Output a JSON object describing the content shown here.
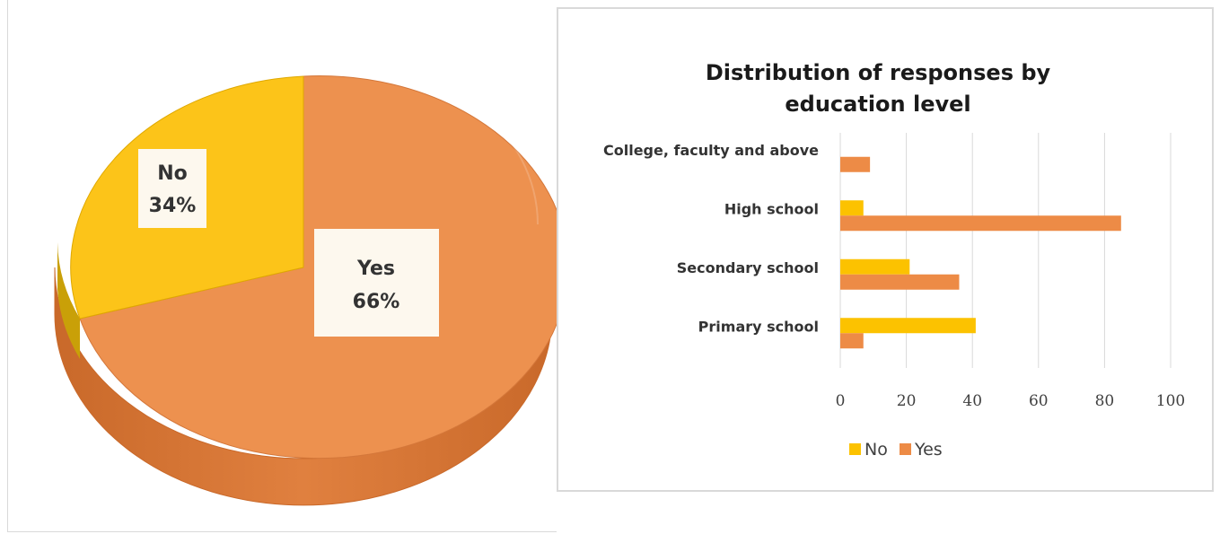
{
  "chart_data": [
    {
      "type": "pie",
      "categories": [
        "Yes",
        "No"
      ],
      "values": [
        66,
        34
      ],
      "labels": {
        "yes_name": "Yes",
        "yes_pct": "66%",
        "no_name": "No",
        "no_pct": "34%"
      },
      "colors": {
        "Yes": "#ed914f",
        "No": "#fcc419"
      },
      "style": "3d"
    },
    {
      "type": "bar",
      "orientation": "horizontal",
      "title_line1": "Distribution of responses by",
      "title_line2": "education level",
      "categories": [
        "College, faculty and above",
        "High school",
        "Secondary school",
        "Primary school"
      ],
      "series": [
        {
          "name": "No",
          "values": [
            0,
            7,
            21,
            41
          ],
          "color": "#fcc200"
        },
        {
          "name": "Yes",
          "values": [
            9,
            85,
            36,
            7
          ],
          "color": "#ed8b46"
        }
      ],
      "xlim": [
        0,
        100
      ],
      "xticks": [
        "0",
        "20",
        "40",
        "60",
        "80",
        "100"
      ],
      "grid": "vertical",
      "legend": "bottom"
    }
  ]
}
